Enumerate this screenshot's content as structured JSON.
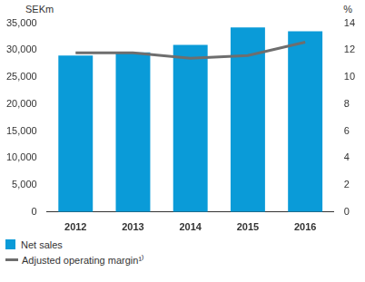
{
  "chart_data": {
    "type": "bar",
    "categories": [
      "2012",
      "2013",
      "2014",
      "2015",
      "2016"
    ],
    "series": [
      {
        "name": "Net sales",
        "type": "bar",
        "color": "#0a9bd8",
        "values": [
          29000,
          29600,
          31000,
          34200,
          33500
        ]
      },
      {
        "name": "Adjusted operating margin¹⁾",
        "type": "line",
        "color": "#6e6e6e",
        "axis": "y2",
        "values": [
          11.8,
          11.8,
          11.4,
          11.6,
          12.6
        ]
      }
    ],
    "y_label": "SEKm",
    "y2_label": "%",
    "ylim": [
      0,
      35000
    ],
    "yticks": [
      0,
      {
        "value": 5000,
        "label": "5,000"
      },
      {
        "value": 10000,
        "label": "10,000"
      },
      {
        "value": 15000,
        "label": "15,000"
      },
      {
        "value": 20000,
        "label": "20,000"
      },
      {
        "value": 25000,
        "label": "25,000"
      },
      {
        "value": 30000,
        "label": "30,000"
      },
      {
        "value": 35000,
        "label": "35,000"
      }
    ],
    "y2lim": [
      0,
      14
    ],
    "y2ticks": [
      0,
      2,
      4,
      6,
      8,
      10,
      12,
      14
    ],
    "grid": false,
    "legend": "bottom"
  }
}
